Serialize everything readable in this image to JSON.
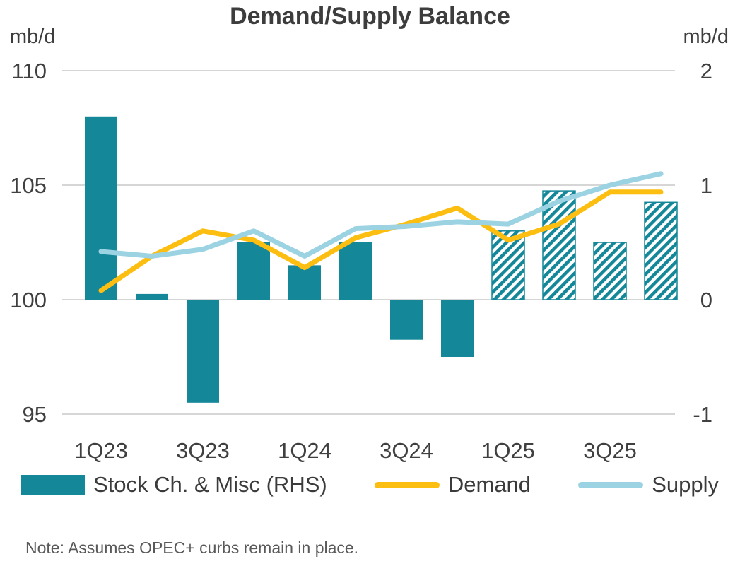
{
  "title": "Demand/Supply Balance",
  "left_axis_unit": "mb/d",
  "right_axis_unit": "mb/d",
  "note": "Note: Assumes OPEC+ curbs remain in place.",
  "colors": {
    "bar": "#148799",
    "demand": "#FCBE10",
    "supply": "#9CD3E2",
    "gridline": "#D6D6D6",
    "text": "#404040"
  },
  "legend": [
    {
      "label": "Stock Ch. & Misc (RHS)",
      "type": "bar",
      "color": "#148799"
    },
    {
      "label": "Demand",
      "type": "line",
      "color": "#FCBE10"
    },
    {
      "label": "Supply",
      "type": "line",
      "color": "#9CD3E2"
    }
  ],
  "chart_data": {
    "type": "combo (bar + line)",
    "title": "Demand/Supply Balance",
    "categories": [
      "1Q23",
      "2Q23",
      "3Q23",
      "4Q23",
      "1Q24",
      "2Q24",
      "3Q24",
      "4Q24",
      "1Q25",
      "2Q25",
      "3Q25",
      "4Q25"
    ],
    "x_tick_labels": [
      "1Q23",
      "3Q23",
      "1Q24",
      "3Q24",
      "1Q25",
      "3Q25"
    ],
    "left_axis": {
      "label": "mb/d",
      "ticks": [
        110,
        105,
        100,
        95
      ],
      "range": [
        95,
        110
      ]
    },
    "right_axis": {
      "label": "mb/d",
      "ticks": [
        2,
        1,
        0,
        -1
      ],
      "range": [
        -1,
        2
      ]
    },
    "grid": "horizontal",
    "legend_position": "bottom",
    "series": [
      {
        "name": "Stock Ch. & Misc (RHS)",
        "type": "bar",
        "axis": "right",
        "color": "#148799",
        "values": [
          1.6,
          0.05,
          -0.9,
          0.5,
          0.3,
          0.5,
          -0.35,
          -0.5,
          0.6,
          0.95,
          0.5,
          0.85
        ],
        "forecast_start_index": 8,
        "forecast_style": "hatched"
      },
      {
        "name": "Demand",
        "type": "line",
        "axis": "left",
        "color": "#FCBE10",
        "values": [
          100.4,
          101.9,
          103.0,
          102.6,
          101.4,
          102.7,
          103.3,
          104.0,
          102.6,
          103.3,
          104.7,
          104.7
        ]
      },
      {
        "name": "Supply",
        "type": "line",
        "axis": "left",
        "color": "#9CD3E2",
        "values": [
          102.1,
          101.9,
          102.2,
          103.0,
          101.9,
          103.1,
          103.2,
          103.4,
          103.3,
          104.3,
          105.0,
          105.5
        ]
      }
    ],
    "note": "Note: Assumes OPEC+ curbs remain in place."
  }
}
